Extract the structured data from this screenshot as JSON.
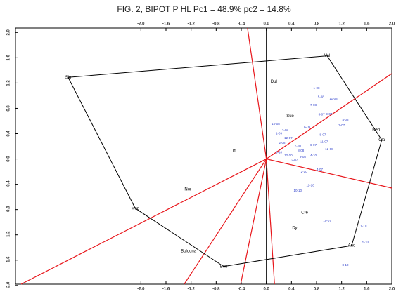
{
  "chart_data": {
    "type": "biplot",
    "title": "FIG. 2, BIPOT P HL Pc1 = 48.9%  pc2 = 14.8%",
    "xlim": [
      -4.0,
      2.0
    ],
    "ylim": [
      -1.98,
      2.07
    ],
    "xticks": [
      {
        "value": -2,
        "label": "-2.0"
      },
      {
        "value": -1.6,
        "label": "-1.6"
      },
      {
        "value": -1.2,
        "label": "-1.2"
      },
      {
        "value": -0.8,
        "label": "-0.8"
      },
      {
        "value": -0.4,
        "label": "-0.4"
      },
      {
        "value": 0,
        "label": "0.0"
      },
      {
        "value": 0.4,
        "label": "0.4"
      },
      {
        "value": 0.8,
        "label": "0.8"
      },
      {
        "value": 1.2,
        "label": "1.2"
      },
      {
        "value": 1.6,
        "label": "1.6"
      },
      {
        "value": 2,
        "label": "2.0"
      }
    ],
    "yticks": [
      {
        "value": 2,
        "label": "2.0"
      },
      {
        "value": 1.6,
        "label": "1.6"
      },
      {
        "value": 1.2,
        "label": "1.2"
      },
      {
        "value": 0.8,
        "label": "0.8"
      },
      {
        "value": 0.4,
        "label": "0.4"
      },
      {
        "value": 0,
        "label": "0.0"
      },
      {
        "value": -0.4,
        "label": "-0.4"
      },
      {
        "value": -0.8,
        "label": "-0.8"
      },
      {
        "value": -1.2,
        "label": "-1.2"
      },
      {
        "value": -1.6,
        "label": "-1.6"
      },
      {
        "value": -2,
        "label": "-2.0"
      }
    ],
    "hull": {
      "color": "#000000",
      "labels": [
        "Sin",
        "Val",
        "Cla",
        "Ano",
        "Bou",
        "Mae"
      ],
      "x": [
        -3.16,
        0.97,
        1.84,
        1.36,
        -0.68,
        -2.09
      ],
      "y": [
        1.29,
        1.63,
        0.3,
        -1.37,
        -1.7,
        -0.78
      ]
    },
    "vectors": {
      "color": "#e8161b",
      "x": [
        -0.3,
        2.0,
        2.0,
        -3.91,
        -1.31,
        -0.41,
        0.13
      ],
      "y": [
        2.07,
        1.35,
        -0.46,
        -1.98,
        -1.98,
        -1.98,
        -1.98
      ]
    },
    "variables": {
      "color": "#000000",
      "labels": [
        "Dul",
        "Sue",
        "Iri",
        "Nor",
        "Cre",
        "Dyl",
        "Bologna",
        "Neo"
      ],
      "x": [
        0.12,
        0.38,
        -0.51,
        -1.25,
        0.61,
        0.46,
        -1.24,
        1.75
      ],
      "y": [
        1.22,
        0.68,
        0.13,
        -0.48,
        -0.85,
        -1.09,
        -1.46,
        0.46
      ]
    },
    "observations": {
      "color": "#3344cc",
      "labels": [
        "1-08",
        "5-08",
        "11-08",
        "7-08",
        "9-07",
        "5-07",
        "3-07",
        "4-08",
        "11-07",
        "10-08",
        "1-09",
        "6-09",
        "12-07",
        "2-08",
        "3-10",
        "8-08",
        "12-08",
        "6-07",
        "9-08",
        "2-07",
        "7-10",
        "12-10",
        "8-07",
        "3-08",
        "4-10",
        "4-07",
        "2-10",
        "11-10",
        "10-10",
        "10-07",
        "1-10",
        "5-10",
        "8-10"
      ],
      "x": [
        0.8,
        0.87,
        1.07,
        0.75,
        1.0,
        0.88,
        1.2,
        1.26,
        0.92,
        0.15,
        0.2,
        0.65,
        0.35,
        0.25,
        0.2,
        0.55,
        1.0,
        0.75,
        0.58,
        0.45,
        0.5,
        0.35,
        0.9,
        0.3,
        0.75,
        0.85,
        0.6,
        0.7,
        0.5,
        0.97,
        1.55,
        1.58,
        1.26
      ],
      "y": [
        1.12,
        0.98,
        0.95,
        0.85,
        0.71,
        0.7,
        0.53,
        0.62,
        0.27,
        0.55,
        0.4,
        0.5,
        0.33,
        0.25,
        0.1,
        0.13,
        0.15,
        0.22,
        0.03,
        -0.02,
        0.2,
        0.05,
        0.38,
        0.45,
        0.05,
        -0.17,
        -0.2,
        -0.42,
        -0.5,
        -0.98,
        -1.06,
        -1.32,
        -1.68
      ]
    }
  }
}
